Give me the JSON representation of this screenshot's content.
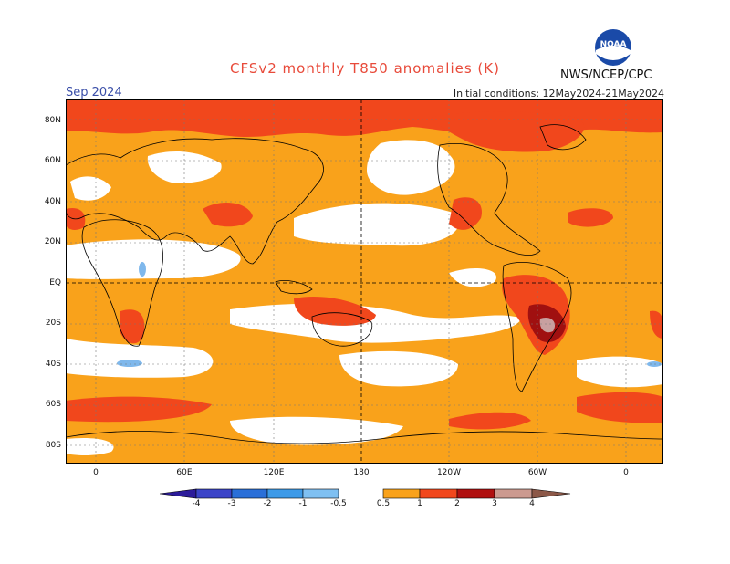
{
  "title": "CFSv2 monthly T850 anomalies (K)",
  "month": "Sep 2024",
  "initial_conditions": "Initial conditions: 12May2024-21May2024",
  "agency": "NWS/NCEP/CPC",
  "logo_text": "NOAA",
  "lat_labels": [
    "80N",
    "60N",
    "40N",
    "20N",
    "EQ",
    "20S",
    "40S",
    "60S",
    "80S"
  ],
  "lon_labels": [
    "0",
    "60E",
    "120E",
    "180",
    "120W",
    "60W",
    "0"
  ],
  "legend": {
    "labels": [
      "-4",
      "-3",
      "-2",
      "-1",
      "-0.5",
      "0.5",
      "1",
      "2",
      "3",
      "4"
    ],
    "colors": [
      "#2c1b9a",
      "#3b44c8",
      "#2a6fd8",
      "#3d9ae8",
      "#7fc0f2",
      "#ffffff",
      "#f9a21b",
      "#f1471c",
      "#b01010",
      "#cc9a90",
      "#8c5848"
    ]
  },
  "colors": {
    "white": "#ffffff",
    "orange": "#f9a21b",
    "red": "#f1471c",
    "darkred": "#a01010",
    "pink": "#c8a0a0",
    "blue": "#7fb8ec"
  }
}
